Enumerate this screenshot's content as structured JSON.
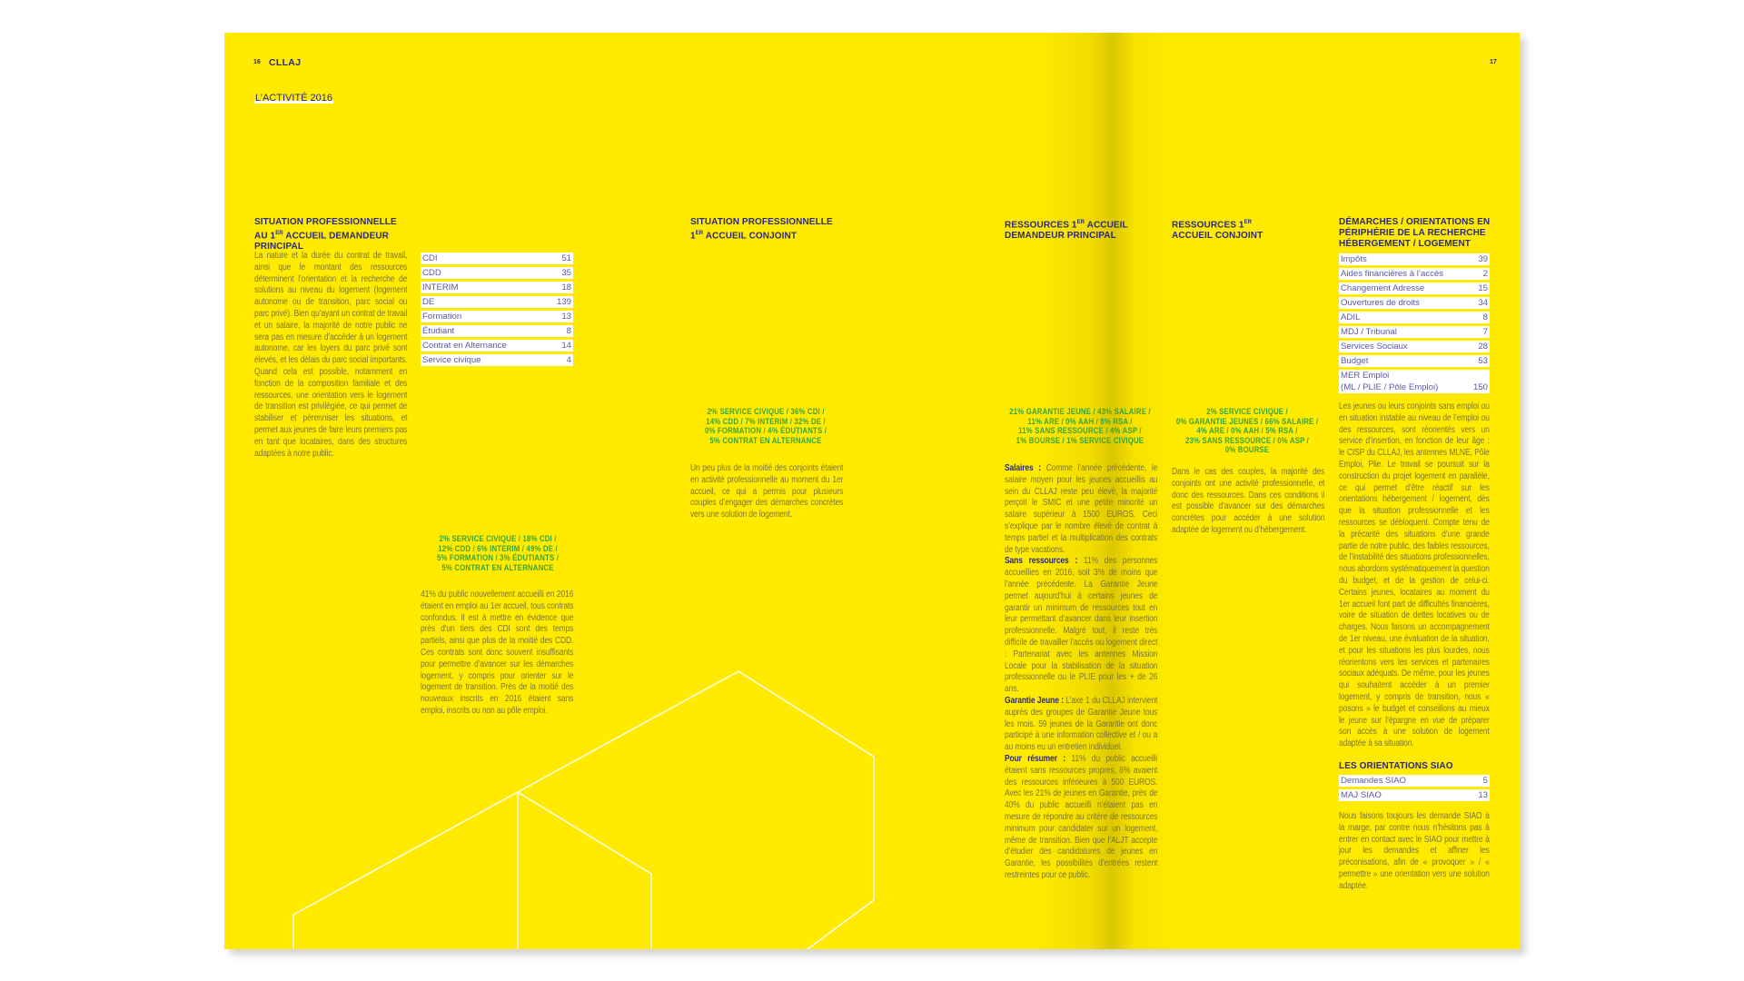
{
  "header": {
    "left_page_number": "16",
    "brand": "CLLAJ",
    "right_page_number": "17",
    "section_title": "L’ACTIVITÉ 2016"
  },
  "colors": {
    "background": "#ffea00",
    "heading": "#2b2a7c",
    "body_text": "#7c7630",
    "chart_label": "#3aa535",
    "slice_dark": "#12a03c",
    "slice_mid": "#4caf35",
    "slice_light": "#96c11f",
    "slice_pale": "#cbd817"
  },
  "col1": {
    "heading": [
      "SITUATION PROFESSIONNELLE",
      "AU 1ER ACCUEIL DEMANDEUR",
      "PRINCIPAL"
    ],
    "text": "La nature et la durée du contrat de travail, ainsi que le montant des ressources déterminent l’orientation et la recherche de solutions au niveau du logement (logement autonome ou de transition, parc social ou parc privé). Bien qu’ayant un contrat de travail et un salaire, la majorité de notre public ne sera pas en mesure d’accéder à un logement autonome, car les loyers du parc privé sont élevés, et les délais du parc social importants. Quand cela est possible, notamment en fonction de la composition familiale et des ressources, une orientation vers le logement de transition est privilégiée, ce qui permet de stabiliser et pérenniser les situations, et permet aux jeunes de faire leurs premiers pas en tant que locataires, dans des structures adaptées à notre public.",
    "table": [
      {
        "label": "CDI",
        "value": "51"
      },
      {
        "label": "CDD",
        "value": "35"
      },
      {
        "label": "INTERIM",
        "value": "18"
      },
      {
        "label": "DE",
        "value": "139"
      },
      {
        "label": "Formation",
        "value": "13"
      },
      {
        "label": "Étudiant",
        "value": "8"
      },
      {
        "label": "Contrat en Alternance",
        "value": "14"
      },
      {
        "label": "Service civique",
        "value": "4"
      }
    ],
    "text2": "41% du public nouvellement accueilli en 2016 étaient en emploi au 1er accueil, tous contrats confondus. Il est à mettre en évidence que près d’un tiers des CDI sont des temps partiels, ainsi que plus de la moitié des CDD. Ces contrats sont donc souvent insuffisants pour permettre d’avancer sur les démarches logement, y compris pour orienter sur le logement de transition. Près de la moitié des nouveaux inscrits en 2016 étaient sans emploi, inscrits ou non au pôle emploi."
  },
  "col2": {
    "heading": [
      "SITUATION PROFESSIONNELLE",
      "1ER ACCUEIL CONJOINT"
    ],
    "text": "Un peu plus de la moitié des conjoints étaient en activité professionnelle au moment du 1er accueil, ce qui a permis pour plusieurs couples d’engager des démarches concrètes vers une solution de logement."
  },
  "col3": {
    "heading": [
      "RESSOURCES 1ER ACCUEIL",
      "DEMANDEUR PRINCIPAL"
    ],
    "paragraphs": [
      {
        "lead": "Salaires :",
        "text": " Comme l’année précédente, le salaire moyen pour les jeunes accueillis au sein du CLLAJ reste peu élevé, la majorité perçoit le SMIC et une petite minorité un salaire supérieur à 1500 EUROS. Ceci s’explique par le nombre élevé de contrat à temps partiel et la multiplication des contrats de type vacations."
      },
      {
        "lead": "Sans ressources :",
        "text": " 11% des personnes accueillies en 2016, soit 3% de moins que l’année précédente. La Garantie Jeune permet aujourd’hui à certains jeunes de garantir un minimum de ressources tout en leur permettant d’avancer dans leur insertion professionnelle. Malgré tout, il reste très difficile de travailler l’accès ou logement direct : Partenariat avec les antennes Mission Locale pour la stabilisation de la situation professionnelle ou le PLIE pour les + de 26 ans."
      },
      {
        "lead": "Garantie Jeune :",
        "text": " L’axe 1 du CLLAJ intervient auprès des groupes de Garantie Jeune tous les mois. 59 jeunes de la Garantie ont donc participé à une information collective et / ou a au moins eu un entretien individuel."
      },
      {
        "lead": "Pour résumer :",
        "text": " 11% du public accueilli étaient sans ressources propres, 6% avaient des ressources inférieures à 500 EUROS. Avec les 21% de jeunes en Garantie, près de 40% du public accueilli n’étaient pas en mesure de répondre au critère de ressources minimum pour candidater sur un logement, même de transition. Bien que l’ALJT accepte d’étudier des candidatures de jeunes en Garantie, les possibilités d’entrées restent restreintes pour ce public."
      }
    ]
  },
  "col4": {
    "heading": [
      "RESSOURCES 1ER",
      "ACCUEIL CONJOINT"
    ],
    "text": "Dans le cas des couples, la majorité des conjoints ont une activité professionnelle, et donc des ressources. Dans ces conditions il est possible d’avancer sur des démarches concrètes pour accéder à une solution adaptée de logement ou d’hébergement."
  },
  "col5": {
    "heading": [
      "DÉMARCHES / ORIENTATIONS EN",
      "PÉRIPHÉRIE DE LA RECHERCHE",
      "HÉBERGEMENT / LOGEMENT"
    ],
    "table": [
      {
        "label": "Impôts",
        "value": "39"
      },
      {
        "label": "Aides financières à l’accès",
        "value": "2"
      },
      {
        "label": "Changement Adresse",
        "value": "15"
      },
      {
        "label": "Ouvertures de droits",
        "value": "34"
      },
      {
        "label": "ADIL",
        "value": "8"
      },
      {
        "label": "MDJ / Tribunal",
        "value": "7"
      },
      {
        "label": "Services Sociaux",
        "value": "28"
      },
      {
        "label": "Budget",
        "value": "53"
      },
      {
        "label": "MER Emploi\n(ML / PLIE / Pôle Emploi)",
        "value": "150"
      }
    ],
    "text": "Les jeunes ou leurs conjoints sans emploi ou en situation instable au niveau de l’emploi ou des ressources, sont réorientés vers un service d’insertion, en fonction de leur âge : le CISP du CLLAJ, les antennes MLNE, Pôle Emploi, Plie. Le travail se poursuit sur la construction du projet logement en parallèle, ce qui permet d’être réactif sur les orientations hébergement / logement, dès que la situation professionnelle et les ressources se débloquent. Compte tenu de la précarité des situations d’une grande partie de notre public, des faibles ressources, de l’instabilité des situations professionnelles, nous abordons systématiquement la question du budget, et de la gestion de celui-ci. Certains jeunes, locataires au moment du 1er accueil font part de difficultés financières, voire de situation de dettes locatives ou de charges. Nous faisons un accompagnement de 1er niveau, une évaluation de la situation, et pour les situations les plus lourdes, nous réorientons vers les services et partenaires sociaux adéquats. De même, pour les jeunes qui souhaitent accéder à un premier logement, y compris de transition, nous « posons » le budget et conseillons au mieux le jeune sur l’épargne en vue de préparer son accès à une solution de logement adaptée à sa situation.",
    "siao_heading": "LES ORIENTATIONS SIAO",
    "siao_table": [
      {
        "label": "Demandes SIAO",
        "value": "5"
      },
      {
        "label": "MAJ SIAO",
        "value": "13"
      }
    ],
    "siao_text": "Nous faisons toujours les demande SIAO à la marge, par contre nous n’hésitons pas à entrer en contact avec le SIAO pour mettre à jour les demandes et affiner les préconisations, afin de « provoquer » / « permettre » une orientation vers une solution adaptée."
  },
  "chart_data": [
    {
      "type": "pie",
      "unit": "%",
      "start": "top",
      "direction": "clockwise",
      "categories": [
        "Service civique",
        "CDI",
        "CDD",
        "Interim",
        "DE",
        "Formation",
        "Étudiants",
        "Contrat en alternance"
      ],
      "values": [
        2,
        18,
        12,
        6,
        49,
        5,
        3,
        5
      ],
      "fills": [
        "dark",
        "hatch-light",
        "light",
        "mid",
        "hatch-mid",
        "dark",
        "pale",
        "mid"
      ],
      "caption": [
        "2% SERVICE CIVIQUE / 18% CDI /",
        "12% CDD / 6% INTERIM / 49% DE /",
        "5% FORMATION / 3% ÉDUTIANTS /",
        "5% CONTRAT EN ALTERNANCE"
      ]
    },
    {
      "type": "pie",
      "unit": "%",
      "start": "top",
      "direction": "clockwise",
      "categories": [
        "Service civique",
        "CDI",
        "CDD",
        "Interim",
        "DE",
        "Formation",
        "Étudiants",
        "Contrat en alternance"
      ],
      "values": [
        2,
        36,
        14,
        7,
        32,
        0,
        4,
        5
      ],
      "fills": [
        "dark",
        "hatch-mid",
        "light",
        "mid",
        "hatch-light",
        "dark",
        "pale",
        "mid"
      ],
      "caption": [
        "2% SERVICE CIVIQUE / 36% CDI /",
        "14% CDD / 7% INTERIM / 32% DE /",
        "0% FORMATION / 4% ÉDUTIANTS /",
        "5% CONTRAT EN ALTERNANCE"
      ]
    },
    {
      "type": "pie",
      "unit": "%",
      "start": "top",
      "direction": "clockwise",
      "categories": [
        "Garantie jeune",
        "Salaire",
        "ARE",
        "AAH",
        "RSA",
        "Sans ressource",
        "ASP",
        "Bourse",
        "Service civique"
      ],
      "values": [
        21,
        43,
        11,
        0,
        8,
        11,
        4,
        1,
        1
      ],
      "fills": [
        "hatch-dark",
        "hatch-mid",
        "light",
        "mid",
        "light",
        "mid",
        "pale",
        "mid",
        "dark"
      ],
      "caption": [
        "21% GARANTIE JEUNE / 43% SALAIRE /",
        "11% ARE / 0% AAH / 8% RSA /",
        "11% SANS RESSOURCE / 4% ASP /",
        "1% BOURSE / 1% SERVICE CIVIQUE"
      ]
    },
    {
      "type": "pie",
      "unit": "%",
      "start": "top",
      "direction": "clockwise",
      "categories": [
        "Service civique",
        "Salaire",
        "ARE",
        "RSA",
        "Sans ressource"
      ],
      "values": [
        2,
        66,
        4,
        5,
        23
      ],
      "fills": [
        "dark",
        "hatch-mid",
        "mid",
        "dark",
        "hatch-light"
      ],
      "caption": [
        "2% SERVICE CIVIQUE /",
        "0% GARANTIE JEUNES / 66% SALAIRE /",
        "4% ARE / 0% AAH / 5% RSA /",
        "23% SANS RESSOURCE / 0% ASP /",
        "0% BOURSE"
      ]
    }
  ]
}
